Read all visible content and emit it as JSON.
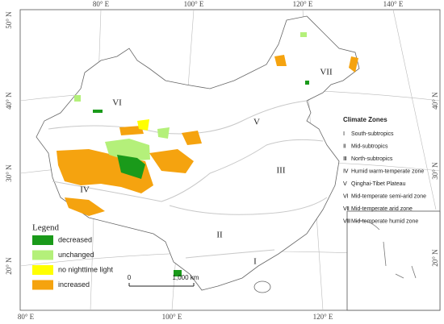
{
  "map": {
    "top_longitudes": [
      "80° E",
      "100° E",
      "120° E",
      "140° E"
    ],
    "bottom_longitudes": [
      "80° E",
      "100° E",
      "120° E"
    ],
    "left_latitudes": [
      "50° N",
      "40° N",
      "30° N",
      "20° N"
    ],
    "right_latitudes": [
      "40° N",
      "30° N",
      "20° N"
    ],
    "zone_labels": [
      "VI",
      "V",
      "III",
      "IV",
      "II",
      "I",
      "VII"
    ],
    "climate_zones": {
      "title": "Climate Zones",
      "items": [
        {
          "numeral": "Ⅰ",
          "label": "South-subtropics"
        },
        {
          "numeral": "Ⅱ",
          "label": "Mid-subtropics"
        },
        {
          "numeral": "Ⅲ",
          "label": "North-subtropics"
        },
        {
          "numeral": "Ⅳ",
          "label": "Humid warm-temperate  zone"
        },
        {
          "numeral": "Ⅴ",
          "label": "Qinghai-Tibet Plateau"
        },
        {
          "numeral": "Ⅵ",
          "label": "Mid-temperate semi-arid zone"
        },
        {
          "numeral": "Ⅶ",
          "label": "Mid-temperate arid zone"
        },
        {
          "numeral": "Ⅷ",
          "label": "Mid-temperate humid zone"
        }
      ]
    },
    "legend": {
      "title": "Legend",
      "items": [
        {
          "name": "decreased",
          "color": "#1a9a1a"
        },
        {
          "name": "unchanged",
          "color": "#b4f07a"
        },
        {
          "name": "no nighttime light",
          "color": "#ffff00"
        },
        {
          "name": "increased",
          "color": "#f5a30f"
        }
      ]
    },
    "scale_bar": {
      "start": "0",
      "end": "1,000 km"
    }
  }
}
